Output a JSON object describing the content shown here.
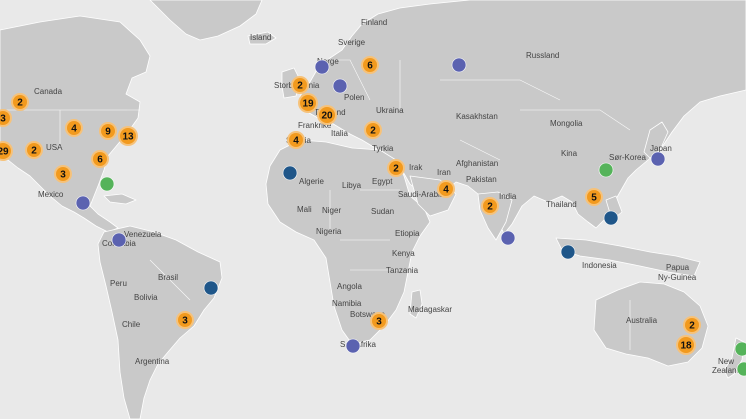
{
  "colors": {
    "water": "#e9e9e9",
    "land": "#c9c9c9",
    "border": "#ffffff",
    "cluster_fill": "#f29a1e",
    "cluster_ring": "#f6c27a",
    "marker_purple": "#5b62b0",
    "marker_navy": "#1f5689",
    "marker_green": "#55b35a"
  },
  "labels": [
    {
      "id": "canada",
      "text": "Canada"
    },
    {
      "id": "usa",
      "text": "USA"
    },
    {
      "id": "mexico",
      "text": "Mexico"
    },
    {
      "id": "venezuela",
      "text": "Venezuela"
    },
    {
      "id": "colombia",
      "text": "Colombia"
    },
    {
      "id": "peru",
      "text": "Peru"
    },
    {
      "id": "brasil",
      "text": "Brasil"
    },
    {
      "id": "bolivia",
      "text": "Bolivia"
    },
    {
      "id": "chile",
      "text": "Chile"
    },
    {
      "id": "argentina",
      "text": "Argentina"
    },
    {
      "id": "island",
      "text": "Island"
    },
    {
      "id": "finland",
      "text": "Finland"
    },
    {
      "id": "sverige",
      "text": "Sverige"
    },
    {
      "id": "norge",
      "text": "Norge"
    },
    {
      "id": "storbritannia",
      "text": "Storbritannia"
    },
    {
      "id": "polen",
      "text": "Polen"
    },
    {
      "id": "ukraina",
      "text": "Ukraina"
    },
    {
      "id": "tyskland",
      "text": "Tyskland"
    },
    {
      "id": "frankrike",
      "text": "Frankrike"
    },
    {
      "id": "italia",
      "text": "Italia"
    },
    {
      "id": "spania",
      "text": "Spania"
    },
    {
      "id": "tyrkia",
      "text": "Tyrkia"
    },
    {
      "id": "russland",
      "text": "Russland"
    },
    {
      "id": "kasakhstan",
      "text": "Kasakhstan"
    },
    {
      "id": "mongolia",
      "text": "Mongolia"
    },
    {
      "id": "kina",
      "text": "Kina"
    },
    {
      "id": "sorkorea",
      "text": "Sør-Korea"
    },
    {
      "id": "japan",
      "text": "Japan"
    },
    {
      "id": "afghanistan",
      "text": "Afghanistan"
    },
    {
      "id": "pakistan",
      "text": "Pakistan"
    },
    {
      "id": "iran",
      "text": "Iran"
    },
    {
      "id": "irak",
      "text": "Irak"
    },
    {
      "id": "egypt",
      "text": "Egypt"
    },
    {
      "id": "libya",
      "text": "Libya"
    },
    {
      "id": "algerie",
      "text": "Algerie"
    },
    {
      "id": "saudiarabia",
      "text": "Saudi-Arabia"
    },
    {
      "id": "india",
      "text": "India"
    },
    {
      "id": "thailand",
      "text": "Thailand"
    },
    {
      "id": "indonesia",
      "text": "Indonesia"
    },
    {
      "id": "papua",
      "text": "Papua"
    },
    {
      "id": "nyguinea",
      "text": "Ny-Guinea"
    },
    {
      "id": "mali",
      "text": "Mali"
    },
    {
      "id": "niger",
      "text": "Niger"
    },
    {
      "id": "sudan",
      "text": "Sudan"
    },
    {
      "id": "nigeria",
      "text": "Nigeria"
    },
    {
      "id": "etiopia",
      "text": "Etiopia"
    },
    {
      "id": "kenya",
      "text": "Kenya"
    },
    {
      "id": "tanzania",
      "text": "Tanzania"
    },
    {
      "id": "angola",
      "text": "Angola"
    },
    {
      "id": "namibia",
      "text": "Namibia"
    },
    {
      "id": "botswana",
      "text": "Botswana"
    },
    {
      "id": "madagaskar",
      "text": "Madagaskar"
    },
    {
      "id": "sorafrika",
      "text": "Sør-Afrika"
    },
    {
      "id": "australia",
      "text": "Australia"
    },
    {
      "id": "new",
      "text": "New"
    },
    {
      "id": "zealand",
      "text": "Zealand"
    }
  ],
  "clusters": [
    {
      "id": "usa-ne-2",
      "count": "2"
    },
    {
      "id": "usa-w-3",
      "count": "3"
    },
    {
      "id": "usa-c-4",
      "count": "4"
    },
    {
      "id": "usa-ne-9",
      "count": "9"
    },
    {
      "id": "usa-e-13",
      "count": "13"
    },
    {
      "id": "usa-w-29",
      "count": "29"
    },
    {
      "id": "usa-c-2",
      "count": "2"
    },
    {
      "id": "usa-se-6",
      "count": "6"
    },
    {
      "id": "usa-s-3",
      "count": "3"
    },
    {
      "id": "uk-2",
      "count": "2"
    },
    {
      "id": "russia-w-6",
      "count": "6"
    },
    {
      "id": "benelux-19",
      "count": "19"
    },
    {
      "id": "europe-20",
      "count": "20"
    },
    {
      "id": "ukraine-2",
      "count": "2"
    },
    {
      "id": "spain-4",
      "count": "4"
    },
    {
      "id": "mideast-2",
      "count": "2"
    },
    {
      "id": "arabia-4",
      "count": "4"
    },
    {
      "id": "india-2",
      "count": "2"
    },
    {
      "id": "asia-se-5",
      "count": "5"
    },
    {
      "id": "brazil-3",
      "count": "3"
    },
    {
      "id": "safrica-3",
      "count": "3"
    },
    {
      "id": "aus-2",
      "count": "2"
    },
    {
      "id": "aus-18",
      "count": "18"
    }
  ],
  "markers": [
    {
      "id": "m1",
      "color": "purple"
    },
    {
      "id": "m2",
      "color": "purple"
    },
    {
      "id": "m3",
      "color": "purple"
    },
    {
      "id": "m4",
      "color": "purple"
    },
    {
      "id": "m5",
      "color": "purple"
    },
    {
      "id": "m6",
      "color": "purple"
    },
    {
      "id": "m7",
      "color": "purple"
    },
    {
      "id": "m8",
      "color": "purple"
    },
    {
      "id": "m9",
      "color": "purple"
    },
    {
      "id": "m10",
      "color": "navy"
    },
    {
      "id": "m11",
      "color": "navy"
    },
    {
      "id": "m12",
      "color": "navy"
    },
    {
      "id": "m13",
      "color": "navy"
    },
    {
      "id": "m14",
      "color": "green"
    },
    {
      "id": "m15",
      "color": "green"
    },
    {
      "id": "m16",
      "color": "green"
    },
    {
      "id": "m17",
      "color": "green"
    }
  ]
}
